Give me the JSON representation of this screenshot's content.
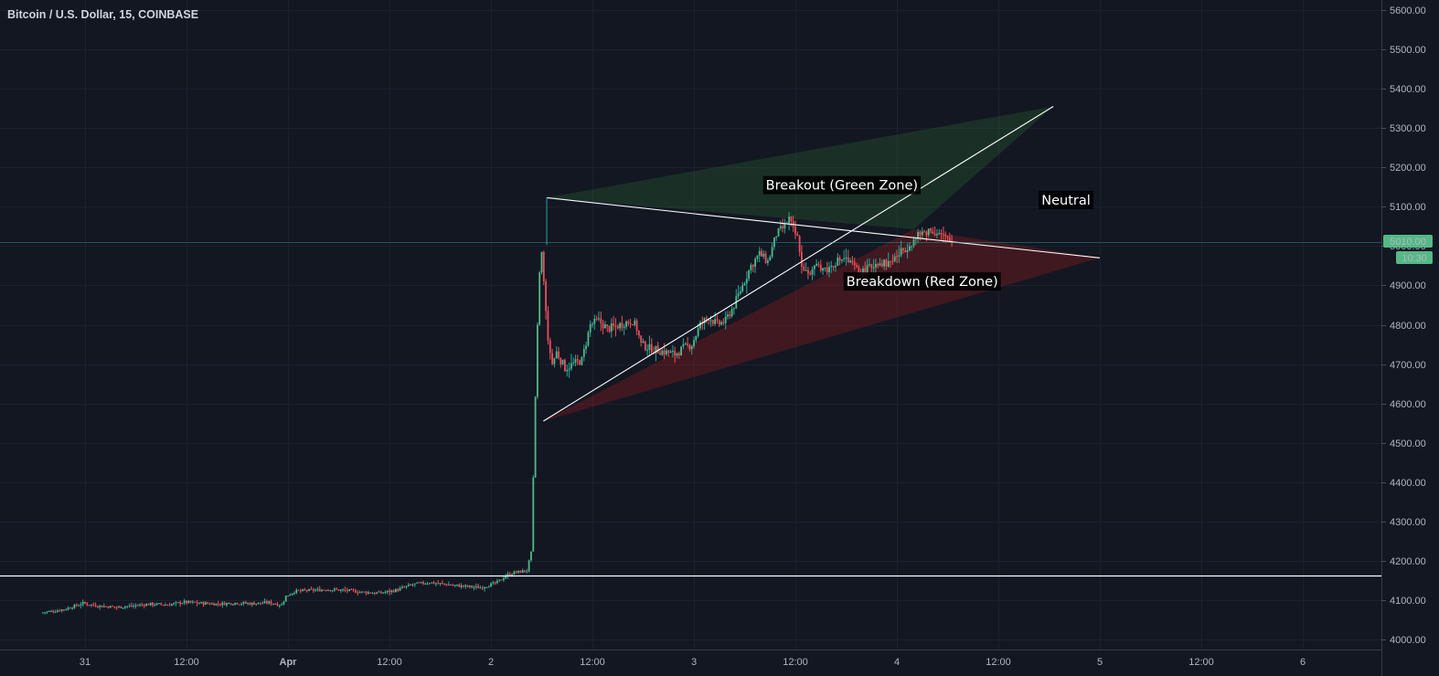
{
  "chart_data": {
    "type": "candlestick",
    "title": "Bitcoin / U.S. Dollar, 15, COINBASE",
    "ylim": [
      3985,
      5625
    ],
    "y_ticks": [
      4000,
      4100,
      4200,
      4300,
      4400,
      4500,
      4600,
      4700,
      4800,
      4900,
      5000,
      5100,
      5200,
      5300,
      5400,
      5500,
      5600
    ],
    "y_tick_labels": [
      "4000.00",
      "4100.00",
      "4200.00",
      "4300.00",
      "4400.00",
      "4500.00",
      "4600.00",
      "4700.00",
      "4800.00",
      "4900.00",
      "5000.00",
      "5100.00",
      "5200.00",
      "5300.00",
      "5400.00",
      "5500.00",
      "5600.00"
    ],
    "x_ticks": [
      {
        "label": "31",
        "t": 24
      },
      {
        "label": "12:00",
        "t": 36
      },
      {
        "label": "Apr",
        "t": 48,
        "bold": true
      },
      {
        "label": "12:00",
        "t": 60
      },
      {
        "label": "2",
        "t": 72
      },
      {
        "label": "12:00",
        "t": 84
      },
      {
        "label": "3",
        "t": 96
      },
      {
        "label": "12:00",
        "t": 108
      },
      {
        "label": "4",
        "t": 120
      },
      {
        "label": "12:00",
        "t": 132
      },
      {
        "label": "5",
        "t": 144
      },
      {
        "label": "12:00",
        "t": 156
      },
      {
        "label": "6",
        "t": 168
      }
    ],
    "x_unit": "hours since Mar 30 00:00",
    "xlim": [
      19,
      172.5
    ],
    "price_path": [
      [
        19,
        4068
      ],
      [
        20.5,
        4072
      ],
      [
        22,
        4078
      ],
      [
        24,
        4092
      ],
      [
        26,
        4085
      ],
      [
        28,
        4082
      ],
      [
        30,
        4086
      ],
      [
        32,
        4090
      ],
      [
        34,
        4088
      ],
      [
        36,
        4095
      ],
      [
        38,
        4092
      ],
      [
        40,
        4090
      ],
      [
        42,
        4093
      ],
      [
        44,
        4091
      ],
      [
        46,
        4094
      ],
      [
        47.5,
        4088
      ],
      [
        48,
        4110
      ],
      [
        49,
        4122
      ],
      [
        51,
        4125
      ],
      [
        53,
        4127
      ],
      [
        55,
        4125
      ],
      [
        57,
        4120
      ],
      [
        59,
        4118
      ],
      [
        61,
        4125
      ],
      [
        63,
        4140
      ],
      [
        65,
        4145
      ],
      [
        67,
        4140
      ],
      [
        69,
        4135
      ],
      [
        71,
        4132
      ],
      [
        72,
        4138
      ],
      [
        73,
        4145
      ],
      [
        74,
        4162
      ],
      [
        75,
        4170
      ],
      [
        76.5,
        4175
      ],
      [
        77,
        4220
      ],
      [
        77.3,
        4450
      ],
      [
        77.6,
        4700
      ],
      [
        77.9,
        4900
      ],
      [
        78.2,
        5000
      ],
      [
        78.6,
        4880
      ],
      [
        79,
        4760
      ],
      [
        79.5,
        4700
      ],
      [
        80,
        4730
      ],
      [
        81,
        4690
      ],
      [
        82,
        4700
      ],
      [
        83,
        4710
      ],
      [
        84,
        4800
      ],
      [
        85,
        4810
      ],
      [
        86,
        4790
      ],
      [
        87,
        4795
      ],
      [
        88,
        4805
      ],
      [
        89,
        4810
      ],
      [
        89.5,
        4790
      ],
      [
        90,
        4750
      ],
      [
        91,
        4740
      ],
      [
        92,
        4735
      ],
      [
        93,
        4730
      ],
      [
        94,
        4725
      ],
      [
        95,
        4740
      ],
      [
        96,
        4750
      ],
      [
        97,
        4800
      ],
      [
        98,
        4820
      ],
      [
        99,
        4800
      ],
      [
        100,
        4810
      ],
      [
        101,
        4850
      ],
      [
        102,
        4900
      ],
      [
        103,
        4950
      ],
      [
        104,
        4980
      ],
      [
        105,
        4960
      ],
      [
        106,
        5030
      ],
      [
        107,
        5050
      ],
      [
        107.5,
        5070
      ],
      [
        108,
        5040
      ],
      [
        108.5,
        5020
      ],
      [
        109,
        4950
      ],
      [
        110,
        4930
      ],
      [
        111,
        4950
      ],
      [
        112,
        4940
      ],
      [
        113,
        4960
      ],
      [
        114,
        4970
      ],
      [
        115,
        4950
      ],
      [
        116,
        4930
      ],
      [
        117,
        4945
      ],
      [
        118,
        4960
      ],
      [
        119,
        4955
      ],
      [
        120,
        4970
      ],
      [
        121,
        4990
      ],
      [
        122,
        5010
      ],
      [
        123,
        5030
      ],
      [
        124,
        5040
      ],
      [
        125,
        5035
      ],
      [
        126,
        5020
      ],
      [
        126.5,
        5010
      ]
    ],
    "last_price": "5010.00",
    "countdown": "10:30",
    "annotations": [
      {
        "text": "Breakout (Green Zone)",
        "t": 113.5,
        "y": 5155
      },
      {
        "text": "Neutral",
        "t": 140,
        "y": 5117
      },
      {
        "text": "Breakdown (Red Zone)",
        "t": 123,
        "y": 4910
      }
    ],
    "support_level": 4163,
    "triangle": {
      "upper": {
        "from": [
          78.6,
          5123
        ],
        "to": [
          144,
          4970
        ]
      },
      "lower": {
        "from": [
          78.2,
          4555
        ],
        "to": [
          138.5,
          5355
        ]
      }
    },
    "green_zone": [
      [
        78.6,
        5123
      ],
      [
        138.5,
        5355
      ],
      [
        122,
        5043
      ]
    ],
    "red_zone": [
      [
        78.2,
        4555
      ],
      [
        144,
        4970
      ],
      [
        122,
        5043
      ]
    ],
    "colors": {
      "bg": "#131722",
      "up": "#26a69a",
      "up_body": "#53b987",
      "down": "#ef5350",
      "down_body": "#eb4d5c",
      "line": "#ffffff",
      "green_zone": "rgba(56,142,60,0.22)",
      "red_zone": "rgba(183,28,28,0.28)",
      "last_price_bg": "#53b987"
    }
  }
}
